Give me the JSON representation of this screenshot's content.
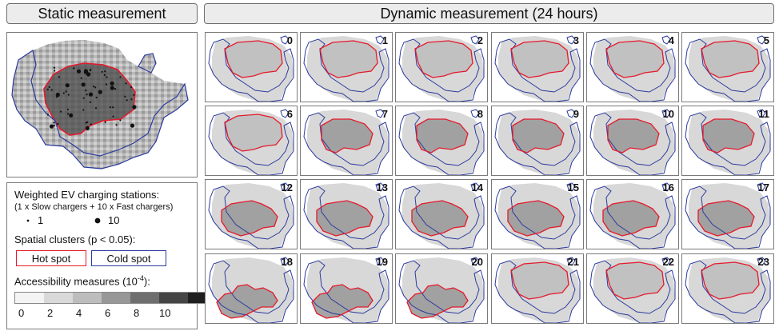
{
  "headers": {
    "static": "Static measurement",
    "dynamic": "Dynamic measurement (24 hours)"
  },
  "panels": [
    "0",
    "1",
    "2",
    "3",
    "4",
    "5",
    "6",
    "7",
    "8",
    "9",
    "10",
    "11",
    "12",
    "13",
    "14",
    "15",
    "16",
    "17",
    "18",
    "19",
    "20",
    "21",
    "22",
    "23"
  ],
  "legend": {
    "stations_title": "Weighted EV charging stations:",
    "stations_sub": "(1 x Slow chargers + 10 x Fast chargers)",
    "small_label": "1",
    "large_label": "10",
    "clusters_title": "Spatial clusters (p < 0.05):",
    "hot": "Hot spot",
    "cold": "Cold spot",
    "access_title_main": "Accessibility measures (10",
    "access_title_exp": "-4",
    "access_title_end": "):",
    "ticks": [
      "0",
      "2",
      "4",
      "6",
      "8",
      "10"
    ],
    "ramp_colors": [
      "#f4f4f4",
      "#d9d9d9",
      "#bdbdbd",
      "#979797",
      "#6e6e6e",
      "#454545",
      "#1e1e1e"
    ]
  },
  "colors": {
    "hot": "#e41a2c",
    "cold": "#2b3a9e"
  }
}
